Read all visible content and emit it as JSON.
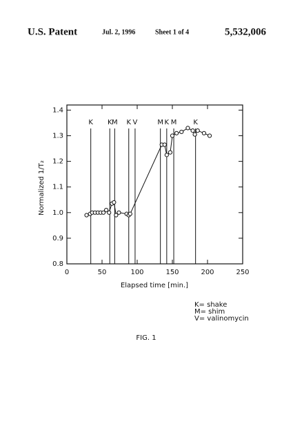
{
  "header": {
    "left": "U.S. Patent",
    "date": "Jul. 2, 1996",
    "sheet": "Sheet 1 of 4",
    "number": "5,532,006"
  },
  "chart_data": {
    "type": "line",
    "xlabel": "Elapsed time   [min.]",
    "ylabel": "Normalized 1/T₂",
    "x": [
      28,
      33,
      36,
      40,
      44,
      48,
      52,
      56,
      60,
      64,
      67,
      70,
      74,
      85,
      88,
      90,
      135,
      139,
      142,
      147,
      150,
      156,
      163,
      172,
      179,
      182,
      186,
      195,
      203
    ],
    "series": [
      {
        "color": "#111111",
        "values": [
          0.99,
          0.995,
          1.0,
          1.0,
          1.0,
          1.0,
          1.0,
          1.01,
          1.0,
          1.035,
          1.04,
          0.99,
          1.0,
          0.995,
          0.99,
          0.995,
          1.265,
          1.265,
          1.225,
          1.235,
          1.3,
          1.31,
          1.315,
          1.33,
          1.32,
          1.305,
          1.32,
          1.31,
          1.3
        ]
      }
    ],
    "events": [
      {
        "x": 34,
        "label": "K"
      },
      {
        "x": 61,
        "label": "K"
      },
      {
        "x": 68,
        "label": "M"
      },
      {
        "x": 88,
        "label": "K"
      },
      {
        "x": 97,
        "label": "V"
      },
      {
        "x": 133,
        "label": "M"
      },
      {
        "x": 142,
        "label": "K"
      },
      {
        "x": 152,
        "label": "M"
      },
      {
        "x": 183,
        "label": "K"
      }
    ],
    "xlim": [
      0,
      250
    ],
    "xticks": [
      0,
      50,
      100,
      150,
      200,
      250
    ],
    "ylim": [
      0.8,
      1.42
    ],
    "yticks": [
      0.8,
      0.9,
      {
        "value": 1,
        "label": "1.0"
      },
      1.1,
      1.2,
      1.3,
      1.4
    ]
  },
  "key": [
    "K= shake",
    "M= shim",
    "V= valinomycin"
  ],
  "figure_label": "FIG. 1"
}
